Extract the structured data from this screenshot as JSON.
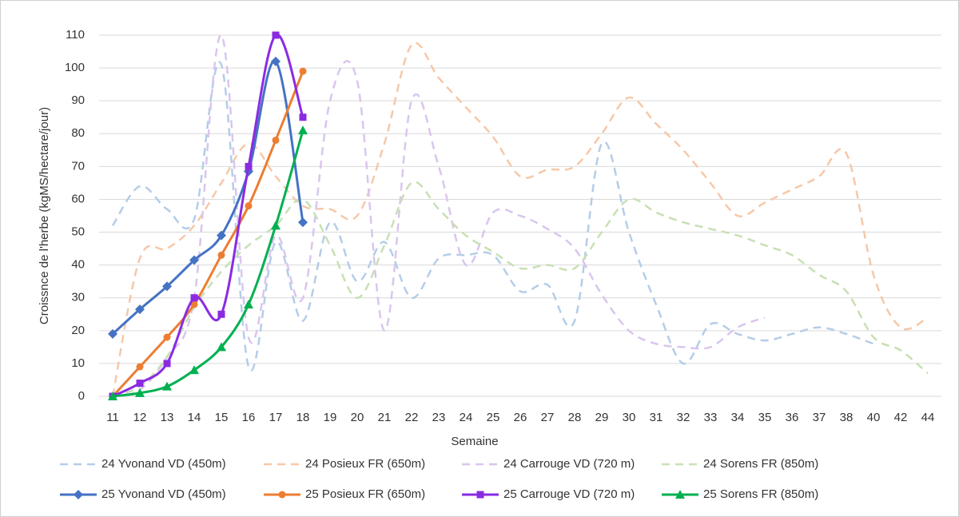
{
  "chart_data": {
    "type": "line",
    "x_label": "Semaine",
    "y_label": "Croissnce de l'herbe (kgMS/hectare/jour)",
    "categories": [
      "11",
      "12",
      "13",
      "14",
      "15",
      "16",
      "17",
      "18",
      "19",
      "20",
      "21",
      "22",
      "23",
      "24",
      "25",
      "26",
      "27",
      "28",
      "29",
      "30",
      "31",
      "32",
      "33",
      "34",
      "35",
      "36",
      "37",
      "38",
      "40",
      "42",
      "44"
    ],
    "ylim": [
      0,
      110
    ],
    "yticks": [
      0,
      10,
      20,
      30,
      40,
      50,
      60,
      70,
      80,
      90,
      100,
      110
    ],
    "grid": true,
    "legend": "bottom",
    "series": [
      {
        "name": "24 Yvonand VD (450m)",
        "color": "#b4cde8",
        "dash": true,
        "values": [
          52,
          64,
          57,
          54,
          101,
          9,
          47,
          23,
          53,
          35,
          47,
          30,
          42,
          43,
          43,
          32,
          34,
          23,
          77,
          50,
          28,
          10,
          22,
          19,
          17,
          19,
          21,
          19,
          16,
          null,
          null
        ]
      },
      {
        "name": "24 Posieux FR (650m)",
        "color": "#f6c8a8",
        "dash": true,
        "values": [
          0,
          42,
          45,
          52,
          65,
          77,
          67,
          58,
          57,
          55,
          77,
          107,
          97,
          88,
          79,
          67,
          69,
          70,
          80,
          91,
          83,
          75,
          65,
          55,
          59,
          63,
          67,
          74,
          37,
          21,
          24
        ]
      },
      {
        "name": "24 Carrouge VD (720 m)",
        "color": "#d9c6ee",
        "dash": true,
        "values": [
          0,
          2,
          12,
          30,
          110,
          18,
          49,
          30,
          90,
          96,
          20,
          90,
          70,
          40,
          56,
          55,
          51,
          45,
          31,
          20,
          16,
          15,
          15,
          21,
          24,
          null,
          null,
          null,
          null,
          null,
          null
        ]
      },
      {
        "name": "24 Sorens FR (850m)",
        "color": "#c8e0b4",
        "dash": true,
        "values": [
          0,
          3,
          12,
          27,
          38,
          46,
          52,
          60,
          46,
          30,
          46,
          65,
          57,
          49,
          44,
          39,
          40,
          39,
          50,
          60,
          56,
          53,
          51,
          49,
          46,
          43,
          37,
          32,
          18,
          14,
          7
        ]
      },
      {
        "name": "25 Yvonand VD (450m)",
        "color": "#4472c4",
        "marker": "diamond",
        "values": [
          19,
          26.5,
          33.5,
          41.5,
          49,
          68.5,
          102,
          53,
          null,
          null,
          null,
          null,
          null,
          null,
          null,
          null,
          null,
          null,
          null,
          null,
          null,
          null,
          null,
          null,
          null,
          null,
          null,
          null,
          null,
          null,
          null
        ]
      },
      {
        "name": "25 Posieux FR (650m)",
        "color": "#ed7d31",
        "marker": "circle",
        "values": [
          0,
          9,
          18,
          28,
          43,
          58,
          78,
          99,
          null,
          null,
          null,
          null,
          null,
          null,
          null,
          null,
          null,
          null,
          null,
          null,
          null,
          null,
          null,
          null,
          null,
          null,
          null,
          null,
          null,
          null,
          null
        ]
      },
      {
        "name": "25 Carrouge VD (720 m)",
        "color": "#8a2be2",
        "marker": "square",
        "values": [
          0,
          4,
          10,
          30,
          25,
          70,
          110,
          85,
          null,
          null,
          null,
          null,
          null,
          null,
          null,
          null,
          null,
          null,
          null,
          null,
          null,
          null,
          null,
          null,
          null,
          null,
          null,
          null,
          null,
          null,
          null
        ]
      },
      {
        "name": "25 Sorens FR (850m)",
        "color": "#00b050",
        "marker": "triangle",
        "values": [
          0,
          1,
          3,
          8,
          15,
          28,
          52,
          81,
          null,
          null,
          null,
          null,
          null,
          null,
          null,
          null,
          null,
          null,
          null,
          null,
          null,
          null,
          null,
          null,
          null,
          null,
          null,
          null,
          null,
          null,
          null
        ]
      }
    ]
  }
}
